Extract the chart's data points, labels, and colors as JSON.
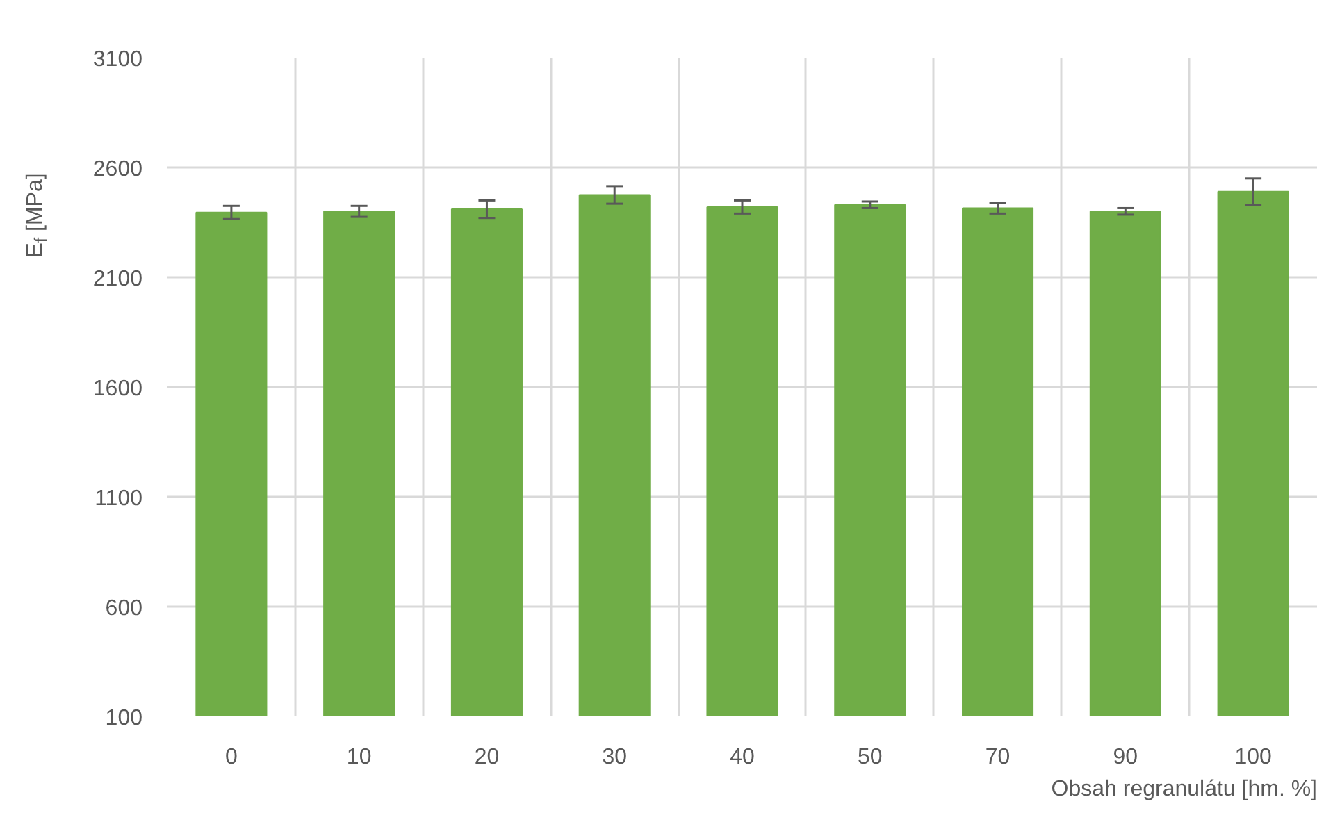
{
  "chart_data": {
    "type": "bar",
    "ylabel": "E$_{f}$ [MPa]",
    "xlabel": "Obsah regranulátu [hm. %]",
    "categories": [
      "0",
      "10",
      "20",
      "30",
      "40",
      "50",
      "70",
      "90",
      "100"
    ],
    "values": [
      2395,
      2400,
      2410,
      2475,
      2420,
      2430,
      2415,
      2400,
      2490
    ],
    "errors": [
      30,
      25,
      40,
      40,
      30,
      15,
      25,
      15,
      60
    ],
    "color": "#70ad47",
    "ylim": [
      100,
      3100
    ],
    "yticks": [
      100,
      600,
      1100,
      1600,
      2100,
      2600,
      3100
    ],
    "grid": true
  }
}
